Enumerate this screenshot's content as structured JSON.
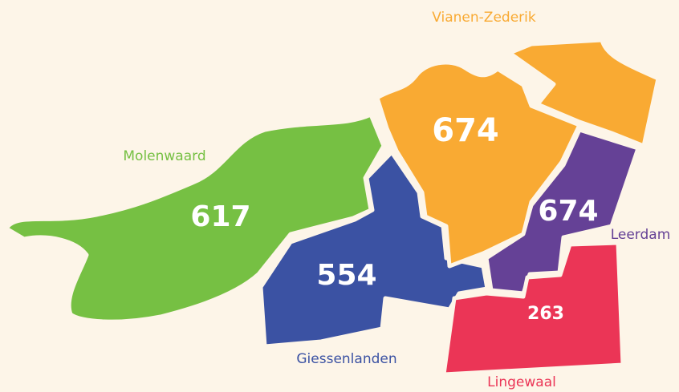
{
  "regions": [
    {
      "name": "Molenwaard",
      "value": 617,
      "color": "#76c043"
    },
    {
      "name": "Giessenlanden",
      "value": 554,
      "color": "#3b52a3"
    },
    {
      "name": "Vianen-Zederik",
      "value": 674,
      "color": "#f9aa33"
    },
    {
      "name": "Leerdam",
      "value": 674,
      "color": "#654196"
    },
    {
      "name": "Lingewaal",
      "value": 263,
      "color": "#eb3556"
    }
  ]
}
